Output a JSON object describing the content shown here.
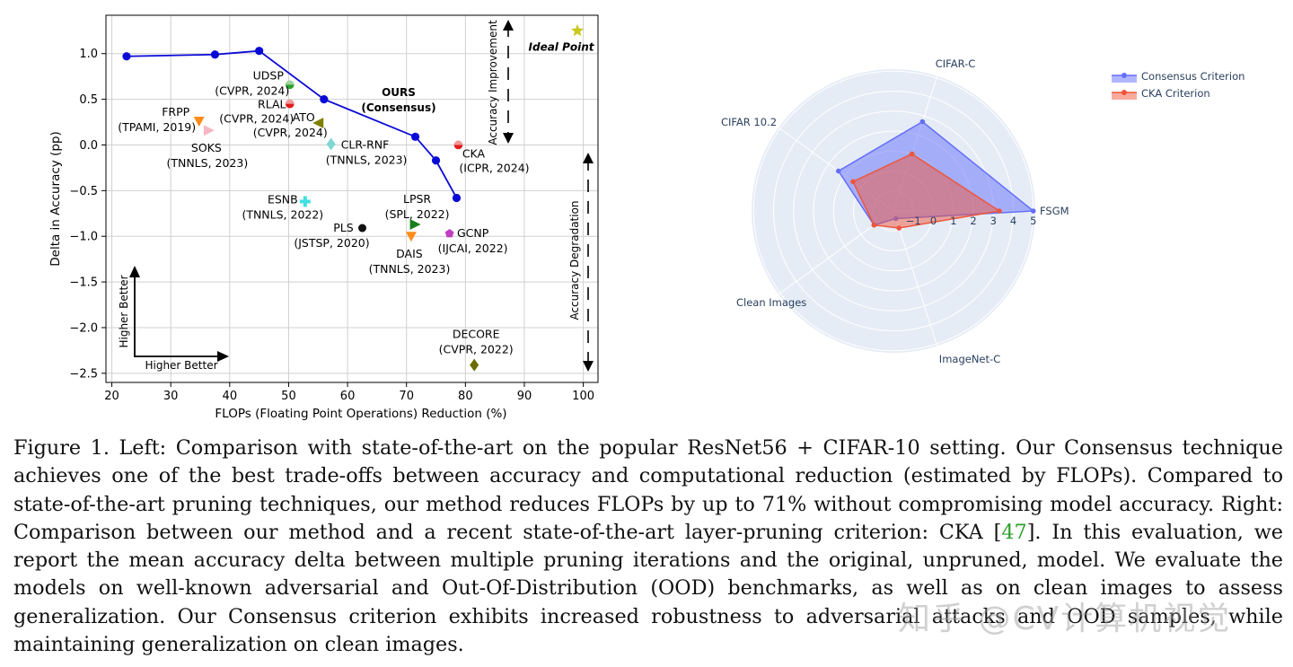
{
  "chart_data": [
    {
      "type": "scatter",
      "xlabel": "FLOPs (Floating Point Operations) Reduction (%)",
      "ylabel": "Delta in Accuracy (pp)",
      "xlim": [
        19,
        102.5
      ],
      "ylim": [
        -2.6,
        1.42
      ],
      "xticks": [
        20,
        30,
        40,
        50,
        60,
        70,
        80,
        90,
        100
      ],
      "yticks": [
        1.0,
        0.5,
        0.0,
        -0.5,
        -1.0,
        -1.5,
        -2.0,
        -2.5
      ],
      "xtick_labels": [
        "20",
        "30",
        "40",
        "50",
        "60",
        "70",
        "80",
        "90",
        "100"
      ],
      "ytick_labels": [
        "1.0",
        "0.5",
        "0.0",
        "−0.5",
        "−1.0",
        "−1.5",
        "−2.0",
        "−2.5"
      ],
      "grid": true,
      "ours_label": [
        "OURS",
        "(Consensus)"
      ],
      "ours_curve": {
        "color": "#0a0ad6",
        "x": [
          22.5,
          37.5,
          45.0,
          56.0,
          71.5,
          75.0,
          78.5
        ],
        "y": [
          0.97,
          0.99,
          1.03,
          0.5,
          0.09,
          -0.17,
          -0.58
        ]
      },
      "methods": [
        {
          "name": "UDSP",
          "venue": "(CVPR, 2024)",
          "x": 50.2,
          "y": 0.66,
          "marker": "circle-half",
          "color": "#2ca02c"
        },
        {
          "name": "RLAL",
          "venue": "(CVPR, 2024)",
          "x": 50.2,
          "y": 0.45,
          "marker": "circle-half",
          "color": "#e41a1c"
        },
        {
          "name": "ATO",
          "venue": "(CVPR, 2024)",
          "x": 55.0,
          "y": 0.24,
          "marker": "triangle-left",
          "color": "#808000"
        },
        {
          "name": "FRPP",
          "venue": "(TPAMI, 2019)",
          "x": 34.8,
          "y": 0.26,
          "marker": "triangle-down",
          "color": "#ff8c1a"
        },
        {
          "name": "SOKS",
          "venue": "(TNNLS, 2023)",
          "x": 36.5,
          "y": 0.16,
          "marker": "triangle-right",
          "color": "#f4b6c2"
        },
        {
          "name": "CLR-RNF",
          "venue": "(TNNLS, 2023)",
          "x": 57.2,
          "y": 0.01,
          "marker": "diamond",
          "color": "#7fd8d4"
        },
        {
          "name": "CKA",
          "venue": "(ICPR, 2024)",
          "x": 78.8,
          "y": 0.0,
          "marker": "circle-half",
          "color": "#e41a1c"
        },
        {
          "name": "ESNB",
          "venue": "(TNNLS, 2022)",
          "x": 52.8,
          "y": -0.62,
          "marker": "plus",
          "color": "#40e0e0"
        },
        {
          "name": "LPSR",
          "venue": "(SPL, 2022)",
          "x": 71.5,
          "y": -0.87,
          "marker": "triangle-right",
          "color": "#1a7f1a"
        },
        {
          "name": "PLS",
          "venue": "(JSTSP, 2020)",
          "x": 62.5,
          "y": -0.91,
          "marker": "circle",
          "color": "#111111"
        },
        {
          "name": "GCNP",
          "venue": "(IJCAI, 2022)",
          "x": 77.3,
          "y": -0.97,
          "marker": "pentagon",
          "color": "#c040c0"
        },
        {
          "name": "DAIS",
          "venue": "(TNNLS, 2023)",
          "x": 70.8,
          "y": -1.0,
          "marker": "triangle-down",
          "color": "#ff8c1a"
        },
        {
          "name": "DECORE",
          "venue": "(CVPR, 2022)",
          "x": 81.5,
          "y": -2.41,
          "marker": "diamond",
          "color": "#6b6b00"
        }
      ],
      "ideal_point": {
        "label": "Ideal Point",
        "x": 99.0,
        "y": 1.25,
        "color": "#c8c81e"
      },
      "annotations": {
        "accuracy_improvement": "Accuracy Improvement",
        "accuracy_degradation": "Accuracy Degradation",
        "higher_better_x": "Higher Better",
        "higher_better_y": "Higher Better"
      }
    },
    {
      "type": "radar",
      "axes": [
        "FSGM",
        "CIFAR-C",
        "CIFAR 10.2",
        "Clean Images",
        "ImageNet-C"
      ],
      "radial_range": [
        -2,
        5.1
      ],
      "radial_ticks": [
        -1,
        0,
        1,
        2,
        3,
        4,
        5
      ],
      "radial_tick_labels": [
        "−1",
        "0",
        "1",
        "2",
        "3",
        "4",
        "5"
      ],
      "legend_position": "top-right",
      "series": [
        {
          "name": "Consensus Criterion",
          "color": "#636efa",
          "values": [
            5.0,
            2.7,
            1.4,
            -0.8,
            -1.6
          ]
        },
        {
          "name": "CKA Criterion",
          "color": "#ef553b",
          "values": [
            3.3,
            1.0,
            0.5,
            -0.8,
            -1.1
          ]
        }
      ]
    }
  ],
  "caption": {
    "lead": "Figure 1. Left: Comparison with state-of-the-art on the popular ResNet56 + CIFAR-10 setting. Our Consensus technique achieves one of the best trade-offs between accuracy and computational reduction (estimated by FLOPs). Compared to state-of-the-art pruning techniques, our method reduces FLOPs by up to 71% without compromising model accuracy. Right: Comparison between our method and a recent state-of-the-art layer-pruning criterion: CKA [",
    "ref": "47",
    "tail": "]. In this evaluation, we report the mean accuracy delta between multiple pruning iterations and the original, unpruned, model. We evaluate the models on well-known adversarial and Out-Of-Distribution (OOD) benchmarks, as well as on clean images to assess generalization. Our Consensus criterion exhibits increased robustness to adversarial attacks and OOD samples, while maintaining generalization on clean images."
  },
  "watermark": "知乎 @CV计算机视觉"
}
